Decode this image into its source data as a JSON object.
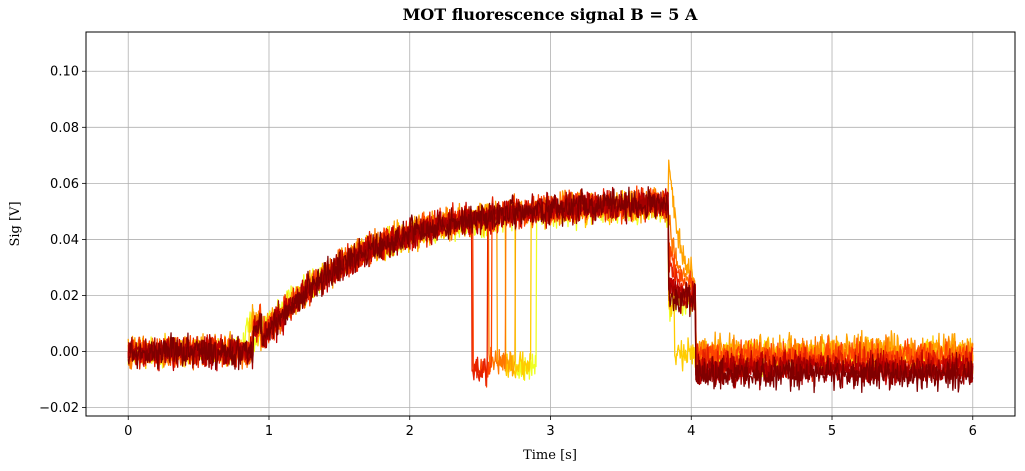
{
  "chart_data": {
    "type": "line",
    "title": "MOT fluorescence signal B = 5 A",
    "xlabel": "Time [s]",
    "ylabel": "Sig [V]",
    "xlim": [
      -0.3,
      6.3
    ],
    "ylim": [
      -0.023,
      0.114
    ],
    "x_ticks": [
      0,
      1,
      2,
      3,
      4,
      5,
      6
    ],
    "x_tick_labels": [
      "0",
      "1",
      "2",
      "3",
      "4",
      "5",
      "6"
    ],
    "y_ticks": [
      -0.02,
      0.0,
      0.02,
      0.04,
      0.06,
      0.08,
      0.1
    ],
    "y_tick_labels": [
      "−0.02",
      "0.00",
      "0.02",
      "0.04",
      "0.06",
      "0.08",
      "0.10"
    ],
    "grid": true,
    "legend": "none",
    "time_range": [
      0,
      6
    ],
    "series": [
      {
        "color": "#eeff22",
        "baseline": 0.0,
        "rise_start": 0.83,
        "plateau": 0.052,
        "tau": 0.75,
        "noise": 0.0045,
        "fall": 4.03,
        "tail": -0.002,
        "spike": 0.0,
        "dip_range": [
          2.75,
          2.9
        ],
        "dip_level": -0.006
      },
      {
        "color": "#ffcc00",
        "baseline": 0.0,
        "rise_start": 0.86,
        "plateau": 0.053,
        "tau": 0.75,
        "noise": 0.0045,
        "fall": 3.88,
        "tail": -0.001,
        "spike": 0.0,
        "dip_range": [
          2.68,
          2.86
        ],
        "dip_level": -0.005
      },
      {
        "color": "#ffa200",
        "baseline": 0.001,
        "rise_start": 0.88,
        "plateau": 0.054,
        "tau": 0.75,
        "noise": 0.0045,
        "fall": 4.03,
        "tail": 0.001,
        "spike": 0.048,
        "dip_range": [
          2.62,
          2.75
        ],
        "dip_level": -0.004
      },
      {
        "color": "#ff7700",
        "baseline": 0.0,
        "rise_start": 0.88,
        "plateau": 0.054,
        "tau": 0.75,
        "noise": 0.0045,
        "fall": 4.03,
        "tail": -0.001,
        "spike": 0.028,
        "dip_range": [
          2.56,
          2.68
        ],
        "dip_level": -0.004
      },
      {
        "color": "#ff4400",
        "baseline": 0.0,
        "rise_start": 0.88,
        "plateau": 0.054,
        "tau": 0.75,
        "noise": 0.0045,
        "fall": 4.03,
        "tail": -0.002,
        "spike": 0.02,
        "dip_range": [
          2.45,
          2.58
        ],
        "dip_level": -0.006
      },
      {
        "color": "#e52000",
        "baseline": 0.0,
        "rise_start": 0.89,
        "plateau": 0.054,
        "tau": 0.75,
        "noise": 0.0045,
        "fall": 4.03,
        "tail": -0.004,
        "spike": 0.012,
        "dip_range": [
          2.44,
          2.55
        ],
        "dip_level": -0.007
      },
      {
        "color": "#c00000",
        "baseline": 0.0,
        "rise_start": 0.89,
        "plateau": 0.054,
        "tau": 0.75,
        "noise": 0.0045,
        "fall": 4.03,
        "tail": -0.006,
        "spike": 0.006
      },
      {
        "color": "#a50000",
        "baseline": 0.0,
        "rise_start": 0.89,
        "plateau": 0.054,
        "tau": 0.75,
        "noise": 0.0045,
        "fall": 4.03,
        "tail": -0.007,
        "spike": 0.004
      },
      {
        "color": "#800000",
        "baseline": 0.0,
        "rise_start": 0.89,
        "plateau": 0.054,
        "tau": 0.75,
        "noise": 0.0045,
        "fall": 4.03,
        "tail": -0.008,
        "spike": 0.0
      }
    ]
  }
}
